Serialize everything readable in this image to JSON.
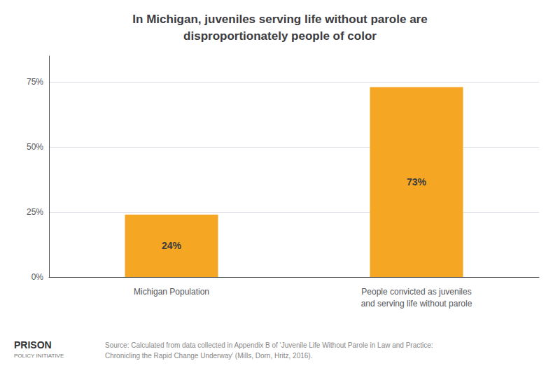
{
  "chart_data": {
    "type": "bar",
    "title": "In Michigan, juveniles serving life without parole are\ndisproportionately people of color",
    "categories": [
      "Michigan Population",
      "People convicted as juveniles\nand serving life without parole"
    ],
    "values": [
      24,
      73
    ],
    "value_labels": [
      "24%",
      "73%"
    ],
    "data_labels": true,
    "color": "#F5A623",
    "ylim": [
      0,
      85
    ],
    "yticks": [
      {
        "value": 0,
        "label": "0%"
      },
      {
        "value": 25,
        "label": "25%"
      },
      {
        "value": 50,
        "label": "50%"
      },
      {
        "value": 75,
        "label": "75%"
      }
    ],
    "grid": true,
    "annotations": [
      "Source: Calculated from data collected in Appendix B of ‘Juvenile Life Without Parole in Law and Practice:\nChronicling the Rapid Change Underway’ (Mills, Dorn, Hritz, 2016).",
      "PRISON",
      "POLICY INITIATIVE"
    ]
  }
}
